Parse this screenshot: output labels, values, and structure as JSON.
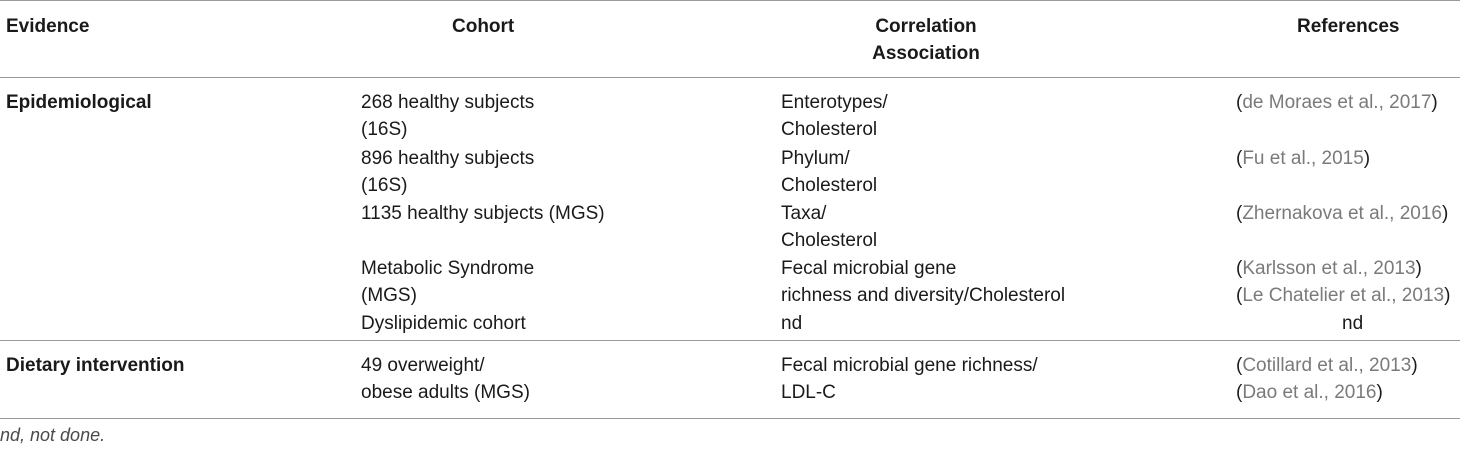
{
  "headers": {
    "evidence": "Evidence",
    "cohort": "Cohort",
    "correlation_line1": "Correlation",
    "correlation_line2": "Association",
    "references": "References"
  },
  "groups": [
    {
      "evidence": "Epidemiological",
      "rows": [
        {
          "cohort": [
            "268 healthy subjects",
            "(16S)"
          ],
          "correlation": [
            "Enterotypes/",
            "Cholesterol"
          ],
          "references": [
            "de Moraes et al., 2017"
          ]
        },
        {
          "cohort": [
            "896 healthy subjects",
            "(16S)"
          ],
          "correlation": [
            "Phylum/",
            "Cholesterol"
          ],
          "references": [
            "Fu et al., 2015"
          ]
        },
        {
          "cohort": [
            "1135 healthy subjects (MGS)"
          ],
          "correlation": [
            "Taxa/",
            "Cholesterol"
          ],
          "references": [
            "Zhernakova et al., 2016"
          ]
        },
        {
          "cohort": [
            "Metabolic Syndrome",
            "(MGS)"
          ],
          "correlation": [
            "Fecal microbial gene",
            "richness and diversity/Cholesterol"
          ],
          "references": [
            "Karlsson et al., 2013",
            "Le Chatelier et al., 2013"
          ]
        },
        {
          "cohort": [
            "Dyslipidemic cohort"
          ],
          "correlation": [
            "nd"
          ],
          "references_plain": "nd"
        }
      ]
    },
    {
      "evidence": "Dietary intervention",
      "rows": [
        {
          "cohort": [
            "49 overweight/",
            "obese adults (MGS)"
          ],
          "correlation": [
            "Fecal microbial gene richness/",
            "LDL-C"
          ],
          "references": [
            "Cotillard et al., 2013",
            "Dao et al., 2016"
          ]
        }
      ]
    }
  ],
  "footnote": "nd, not done."
}
